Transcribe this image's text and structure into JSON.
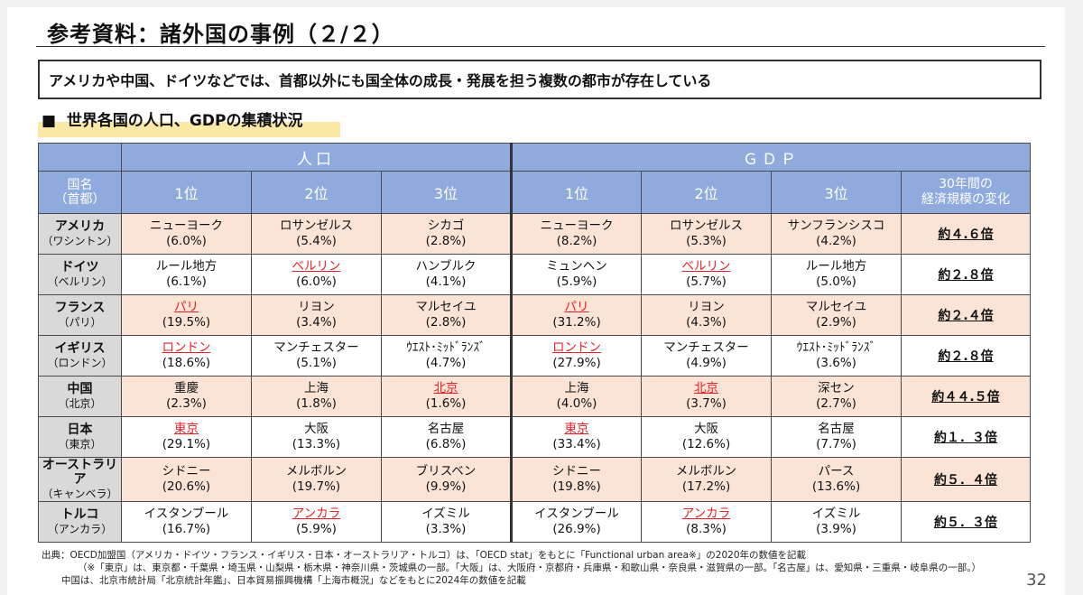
{
  "title": "参考資料：諸外国の事例（２/２）",
  "lead": "アメリカや中国、ドイツなどでは、首都以外にも国全体の成長・発展を担う複数の都市が存在している",
  "section_mark": "■",
  "section_title": "世界各国の人口、GDPの集積状況",
  "table": {
    "group_population": "人口",
    "group_gdp": "ＧＤＰ",
    "header_country": "国名",
    "header_capital": "（首都）",
    "rank1": "1位",
    "rank2": "2位",
    "rank3": "3位",
    "header_change_1": "30年間の",
    "header_change_2": "経済規模の変化",
    "rows": [
      {
        "country": "アメリカ",
        "capital": "（ワシントン）",
        "p1": {
          "city": "ニューヨーク",
          "pct": "(6.0%)"
        },
        "p2": {
          "city": "ロサンゼルス",
          "pct": "(5.4%)"
        },
        "p3": {
          "city": "シカゴ",
          "pct": "(2.8%)"
        },
        "g1": {
          "city": "ニューヨーク",
          "pct": "(8.2%)"
        },
        "g2": {
          "city": "ロサンゼルス",
          "pct": "(5.3%)"
        },
        "g3": {
          "city": "サンフランシスコ",
          "pct": "(4.2%)"
        },
        "change": "約４.６倍"
      },
      {
        "country": "ドイツ",
        "capital": "（ベルリン）",
        "p1": {
          "city": "ルール地方",
          "pct": "(6.1%)"
        },
        "p2": {
          "city": "ベルリン",
          "pct": "(6.0%)"
        },
        "p3": {
          "city": "ハンブルク",
          "pct": "(4.1%)"
        },
        "g1": {
          "city": "ミュンヘン",
          "pct": "(5.9%)"
        },
        "g2": {
          "city": "ベルリン",
          "pct": "(5.7%)"
        },
        "g3": {
          "city": "ルール地方",
          "pct": "(5.0%)"
        },
        "change": "約２.８倍"
      },
      {
        "country": "フランス",
        "capital": "（パリ）",
        "p1": {
          "city": "パリ",
          "pct": "(19.5%)"
        },
        "p2": {
          "city": "リヨン",
          "pct": "(3.4%)"
        },
        "p3": {
          "city": "マルセイユ",
          "pct": "(2.8%)"
        },
        "g1": {
          "city": "パリ",
          "pct": "(31.2%)"
        },
        "g2": {
          "city": "リヨン",
          "pct": "(4.3%)"
        },
        "g3": {
          "city": "マルセイユ",
          "pct": "(2.9%)"
        },
        "change": "約２.４倍"
      },
      {
        "country": "イギリス",
        "capital": "（ロンドン）",
        "p1": {
          "city": "ロンドン",
          "pct": "(18.6%)"
        },
        "p2": {
          "city": "マンチェスター",
          "pct": "(5.1%)"
        },
        "p3": {
          "city": "ｳｴｽﾄ･ﾐｯﾄﾞﾗﾝｽﾞ",
          "pct": "(4.7%)"
        },
        "g1": {
          "city": "ロンドン",
          "pct": "(27.9%)"
        },
        "g2": {
          "city": "マンチェスター",
          "pct": "(4.9%)"
        },
        "g3": {
          "city": "ｳｴｽﾄ･ﾐｯﾄﾞﾗﾝｽﾞ",
          "pct": "(3.6%)"
        },
        "change": "約２.８倍"
      },
      {
        "country": "中国",
        "capital": "（北京）",
        "p1": {
          "city": "重慶",
          "pct": "(2.3%)"
        },
        "p2": {
          "city": "上海",
          "pct": "(1.8%)"
        },
        "p3": {
          "city": "北京",
          "pct": "(1.6%)"
        },
        "g1": {
          "city": "上海",
          "pct": "(4.0%)"
        },
        "g2": {
          "city": "北京",
          "pct": "(3.7%)"
        },
        "g3": {
          "city": "深セン",
          "pct": "(2.7%)"
        },
        "change": "約４４.５倍"
      },
      {
        "country": "日本",
        "capital": "（東京）",
        "p1": {
          "city": "東京",
          "pct": "(29.1%)"
        },
        "p2": {
          "city": "大阪",
          "pct": "(13.3%)"
        },
        "p3": {
          "city": "名古屋",
          "pct": "(6.8%)"
        },
        "g1": {
          "city": "東京",
          "pct": "(33.4%)"
        },
        "g2": {
          "city": "大阪",
          "pct": "(12.6%)"
        },
        "g3": {
          "city": "名古屋",
          "pct": "(7.7%)"
        },
        "change": "約１．３倍"
      },
      {
        "country": "オーストラリア",
        "capital": "（キャンベラ）",
        "p1": {
          "city": "シドニー",
          "pct": "(20.6%)"
        },
        "p2": {
          "city": "メルボルン",
          "pct": "(19.7%)"
        },
        "p3": {
          "city": "ブリスベン",
          "pct": "(9.9%)"
        },
        "g1": {
          "city": "シドニー",
          "pct": "(19.8%)"
        },
        "g2": {
          "city": "メルボルン",
          "pct": "(17.2%)"
        },
        "g3": {
          "city": "パース",
          "pct": "(13.6%)"
        },
        "change": "約５．４倍"
      },
      {
        "country": "トルコ",
        "capital": "（アンカラ）",
        "p1": {
          "city": "イスタンブール",
          "pct": "(16.7%)"
        },
        "p2": {
          "city": "アンカラ",
          "pct": "(5.9%)"
        },
        "p3": {
          "city": "イズミル",
          "pct": "(3.3%)"
        },
        "g1": {
          "city": "イスタンブール",
          "pct": "(26.9%)"
        },
        "g2": {
          "city": "アンカラ",
          "pct": "(8.3%)"
        },
        "g3": {
          "city": "イズミル",
          "pct": "(3.9%)"
        },
        "change": "約５．３倍"
      }
    ]
  },
  "notes": [
    "出典：OECD加盟国（アメリカ・ドイツ・フランス・イギリス・日本・オーストラリア・トルコ）は、「OECD stat」をもとに「Functional urban area※」の2020年の数値を記載",
    "（※「東京」は、東京都・千葉県・埼玉県・山梨県・栃木県・神奈川県・茨城県の一部。「大阪」は、大阪府・京都府・兵庫県・和歌山県・奈良県・滋賀県の一部。「名古屋」は、愛知県・三重県・岐阜県の一部。）",
    "中国は、北京市統計局「北京統計年鑑」、日本貿易振興機構「上海市概況」などをもとに2024年の数値を記載"
  ],
  "page_number": "32",
  "colors": {
    "header_blue": "#8faadc",
    "pink_row": "#fbe4d6",
    "capital_red": "#e31e24",
    "country_gray": "#d9d9d9",
    "highlight_yellow": "#fbe9a8"
  }
}
